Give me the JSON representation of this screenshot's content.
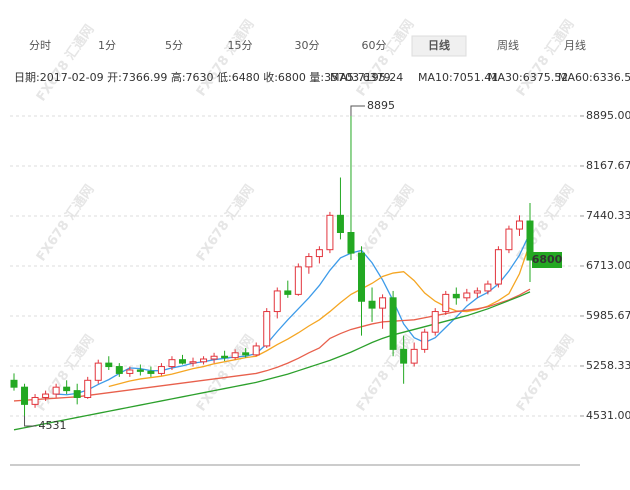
{
  "tabs": [
    "分时",
    "1分",
    "5分",
    "15分",
    "30分",
    "60分",
    "日线",
    "周线",
    "月线"
  ],
  "info": "日期:2017-02-09 开:7366.99 高:7630 低:6480 收:6800 量:35703.6379",
  "ma_labels": [
    "MA5:7195.24",
    "MA10:7051.41",
    "MA30:6375.52",
    "MA60:6336.54"
  ],
  "watermark": "FX678 汇通网",
  "chart_data": {
    "type": "candlestick",
    "open": [
      5050,
      4950,
      4700,
      4800,
      4850,
      4950,
      4900,
      4800,
      5050,
      5300,
      5250,
      5150,
      5200,
      5180,
      5150,
      5250,
      5350,
      5300,
      5320,
      5360,
      5400,
      5380,
      5450,
      5420,
      5550,
      6050,
      6350,
      6300,
      6700,
      6850,
      6950,
      7450,
      7200,
      6900,
      6200,
      6100,
      6250,
      5500,
      5300,
      5500,
      5750,
      6050,
      6300,
      6250,
      6320,
      6350,
      6450,
      6950,
      7250,
      7366.99
    ],
    "high": [
      5150,
      5000,
      4850,
      4900,
      5000,
      5050,
      5000,
      5100,
      5350,
      5400,
      5300,
      5250,
      5280,
      5250,
      5300,
      5400,
      5420,
      5380,
      5400,
      5450,
      5480,
      5500,
      5520,
      5600,
      6100,
      6400,
      6500,
      6750,
      6900,
      7000,
      7500,
      8000,
      8895,
      7000,
      6400,
      6300,
      6350,
      5700,
      5600,
      5800,
      6100,
      6350,
      6400,
      6380,
      6400,
      6500,
      7000,
      7300,
      7450,
      7630
    ],
    "low": [
      4900,
      4531,
      4650,
      4750,
      4800,
      4850,
      4700,
      4780,
      5000,
      5200,
      5100,
      5100,
      5120,
      5100,
      5120,
      5200,
      5280,
      5250,
      5280,
      5300,
      5330,
      5350,
      5380,
      5400,
      5520,
      5950,
      6250,
      6280,
      6600,
      6750,
      6900,
      7100,
      6800,
      5700,
      5900,
      5800,
      5400,
      5000,
      5250,
      5450,
      5700,
      6000,
      6150,
      6200,
      6250,
      6300,
      6400,
      6900,
      7150,
      6480
    ],
    "close": [
      4950,
      4700,
      4800,
      4850,
      4950,
      4900,
      4800,
      5050,
      5300,
      5250,
      5150,
      5200,
      5180,
      5150,
      5250,
      5350,
      5300,
      5320,
      5360,
      5400,
      5380,
      5450,
      5420,
      5550,
      6050,
      6350,
      6300,
      6700,
      6850,
      6950,
      7450,
      7200,
      6900,
      6200,
      6100,
      6250,
      5500,
      5300,
      5500,
      5750,
      6050,
      6300,
      6250,
      6320,
      6350,
      6450,
      6950,
      7250,
      7366.99,
      6800
    ],
    "up_color": "#e2343c",
    "down_color": "#23a822",
    "series": [
      {
        "name": "MA5",
        "color": "#3d9be9",
        "values": [
          null,
          null,
          null,
          null,
          4850,
          4840,
          4860,
          4910,
          4990,
          5060,
          5150,
          5230,
          5220,
          5190,
          5190,
          5230,
          5260,
          5300,
          5320,
          5350,
          5370,
          5390,
          5400,
          5440,
          5580,
          5760,
          5930,
          6090,
          6250,
          6430,
          6650,
          6830,
          6900,
          6940,
          6760,
          6510,
          6210,
          5870,
          5670,
          5600,
          5670,
          5820,
          5970,
          6130,
          6250,
          6330,
          6450,
          6640,
          6870,
          7195.24
        ]
      },
      {
        "name": "MA10",
        "color": "#f5a623",
        "values": [
          null,
          null,
          null,
          null,
          null,
          null,
          null,
          null,
          null,
          4960,
          5000,
          5040,
          5070,
          5090,
          5110,
          5140,
          5180,
          5220,
          5250,
          5290,
          5320,
          5350,
          5380,
          5400,
          5480,
          5570,
          5650,
          5740,
          5840,
          5930,
          6050,
          6180,
          6300,
          6380,
          6460,
          6560,
          6610,
          6630,
          6500,
          6320,
          6200,
          6120,
          6060,
          6050,
          6080,
          6130,
          6210,
          6310,
          6600,
          7051.41
        ]
      },
      {
        "name": "MA30",
        "color": "#e8604c",
        "values": [
          4750,
          4760,
          4770,
          4780,
          4790,
          4800,
          4810,
          4830,
          4850,
          4870,
          4890,
          4910,
          4930,
          4950,
          4970,
          4990,
          5010,
          5030,
          5050,
          5070,
          5090,
          5110,
          5130,
          5150,
          5190,
          5240,
          5300,
          5370,
          5450,
          5520,
          5660,
          5730,
          5790,
          5830,
          5870,
          5900,
          5910,
          5920,
          5930,
          5960,
          5990,
          6020,
          6050,
          6070,
          6090,
          6120,
          6170,
          6220,
          6290,
          6375.52
        ]
      },
      {
        "name": "MA60",
        "color": "#2ca02c",
        "values": [
          4330,
          4360,
          4390,
          4420,
          4450,
          4480,
          4510,
          4540,
          4570,
          4600,
          4630,
          4660,
          4690,
          4720,
          4750,
          4780,
          4810,
          4840,
          4870,
          4900,
          4930,
          4960,
          4990,
          5020,
          5060,
          5100,
          5140,
          5190,
          5240,
          5290,
          5340,
          5400,
          5460,
          5530,
          5600,
          5660,
          5710,
          5750,
          5790,
          5830,
          5870,
          5910,
          5950,
          5990,
          6040,
          6090,
          6150,
          6210,
          6270,
          6336.54
        ]
      }
    ],
    "ylim": [
      3818,
      9302
    ],
    "yticks": [
      {
        "value": 4531,
        "label": "4531.00"
      },
      {
        "value": 5258.33,
        "label": "5258.33"
      },
      {
        "value": 5985.67,
        "label": "5985.67"
      },
      {
        "value": 6713,
        "label": "6713.00"
      },
      {
        "value": 7440.33,
        "label": "7440.33"
      },
      {
        "value": 8167.67,
        "label": "8167.67"
      },
      {
        "value": 8895,
        "label": "8895.00"
      }
    ],
    "grid": true,
    "high_mark": 8895,
    "low_mark": 4531,
    "last_mark": 6800
  }
}
